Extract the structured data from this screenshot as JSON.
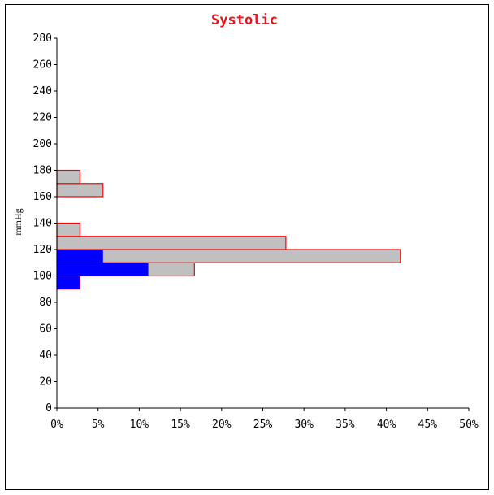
{
  "chart_data": {
    "type": "bar",
    "orientation": "horizontal",
    "title": "Systolic",
    "ylabel": "mmHg",
    "xlabel": "",
    "ylim": [
      0,
      280
    ],
    "xlim": [
      0,
      50
    ],
    "y_ticks": [
      0,
      20,
      40,
      60,
      80,
      100,
      120,
      140,
      160,
      180,
      200,
      220,
      240,
      260,
      280
    ],
    "x_ticks": [
      "0%",
      "5%",
      "10%",
      "15%",
      "20%",
      "25%",
      "30%",
      "35%",
      "40%",
      "45%",
      "50%"
    ],
    "x_tick_values": [
      0,
      5,
      10,
      15,
      20,
      25,
      30,
      35,
      40,
      45,
      50
    ],
    "bins": [
      {
        "from": 90,
        "to": 100,
        "gray": 2.8,
        "blue": 2.8
      },
      {
        "from": 100,
        "to": 110,
        "gray": 16.7,
        "blue": 11.1
      },
      {
        "from": 110,
        "to": 120,
        "gray": 41.7,
        "blue": 5.6
      },
      {
        "from": 120,
        "to": 130,
        "gray": 27.8,
        "blue": 0
      },
      {
        "from": 130,
        "to": 140,
        "gray": 2.8,
        "blue": 0
      },
      {
        "from": 160,
        "to": 170,
        "gray": 5.6,
        "blue": 0
      },
      {
        "from": 170,
        "to": 180,
        "gray": 2.8,
        "blue": 0
      }
    ],
    "colors": {
      "title": "#e8141c",
      "gray_fill": "#c0c0c0",
      "bar_outline": "#ff0000",
      "blue_fill": "#0000ff",
      "axis": "#000000"
    },
    "grid": false,
    "legend": "none"
  }
}
